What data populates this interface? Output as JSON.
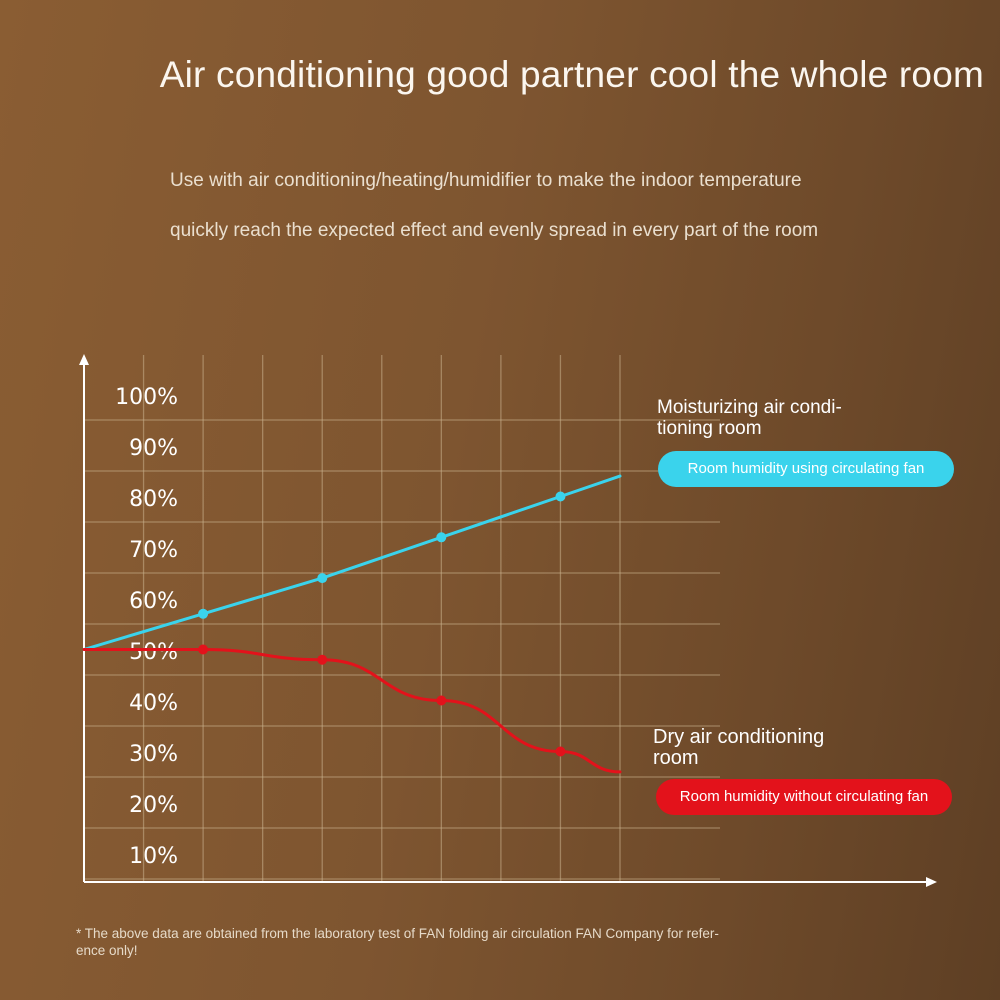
{
  "header": {
    "title": "Air conditioning good partner cool the whole room",
    "subtitle_line1": "Use with air conditioning/heating/humidifier to make the indoor temperature",
    "subtitle_line2": "quickly reach the expected effect and evenly spread in every part of the room"
  },
  "legend": {
    "top_heading_line1": "Moisturizing air condi-",
    "top_heading_line2": "tioning room",
    "top_pill": "Room humidity using circulating fan",
    "bottom_heading_line1": "Dry air conditioning",
    "bottom_heading_line2": "room",
    "bottom_pill": "Room humidity without circulating fan"
  },
  "footnote": {
    "line1": "* The above data are obtained from the laboratory test of FAN folding air circulation FAN Company for refer-",
    "line2": "ence only!"
  },
  "colors": {
    "background": "#7e5530",
    "blue_series": "#3ad3ec",
    "red_series": "#e3121b",
    "grid": "#c9b08d",
    "axis": "#ffffff"
  },
  "chart_data": {
    "type": "line",
    "title": "",
    "xlabel": "",
    "ylabel": "",
    "y_tick_labels": [
      "10%",
      "20%",
      "30%",
      "40%",
      "50%",
      "60%",
      "70%",
      "80%",
      "90%",
      "100%"
    ],
    "y_ticks": [
      10,
      20,
      30,
      40,
      50,
      60,
      70,
      80,
      90,
      100
    ],
    "ylim": [
      5,
      100
    ],
    "xlim": [
      0,
      9
    ],
    "grid": true,
    "legend_position": "right",
    "series": [
      {
        "name": "Room humidity using circulating fan",
        "color": "#3ad3ec",
        "x": [
          0,
          2,
          4,
          6,
          8,
          9
        ],
        "y": [
          55,
          62,
          69,
          77,
          85,
          89
        ],
        "marker_index": [
          1,
          2,
          3,
          4
        ]
      },
      {
        "name": "Room humidity without circulating fan",
        "color": "#e3121b",
        "x": [
          0,
          2,
          4,
          6,
          8,
          9
        ],
        "y": [
          55,
          55,
          53,
          45,
          35,
          31
        ],
        "marker_index": [
          1,
          2,
          3,
          4
        ]
      }
    ]
  }
}
